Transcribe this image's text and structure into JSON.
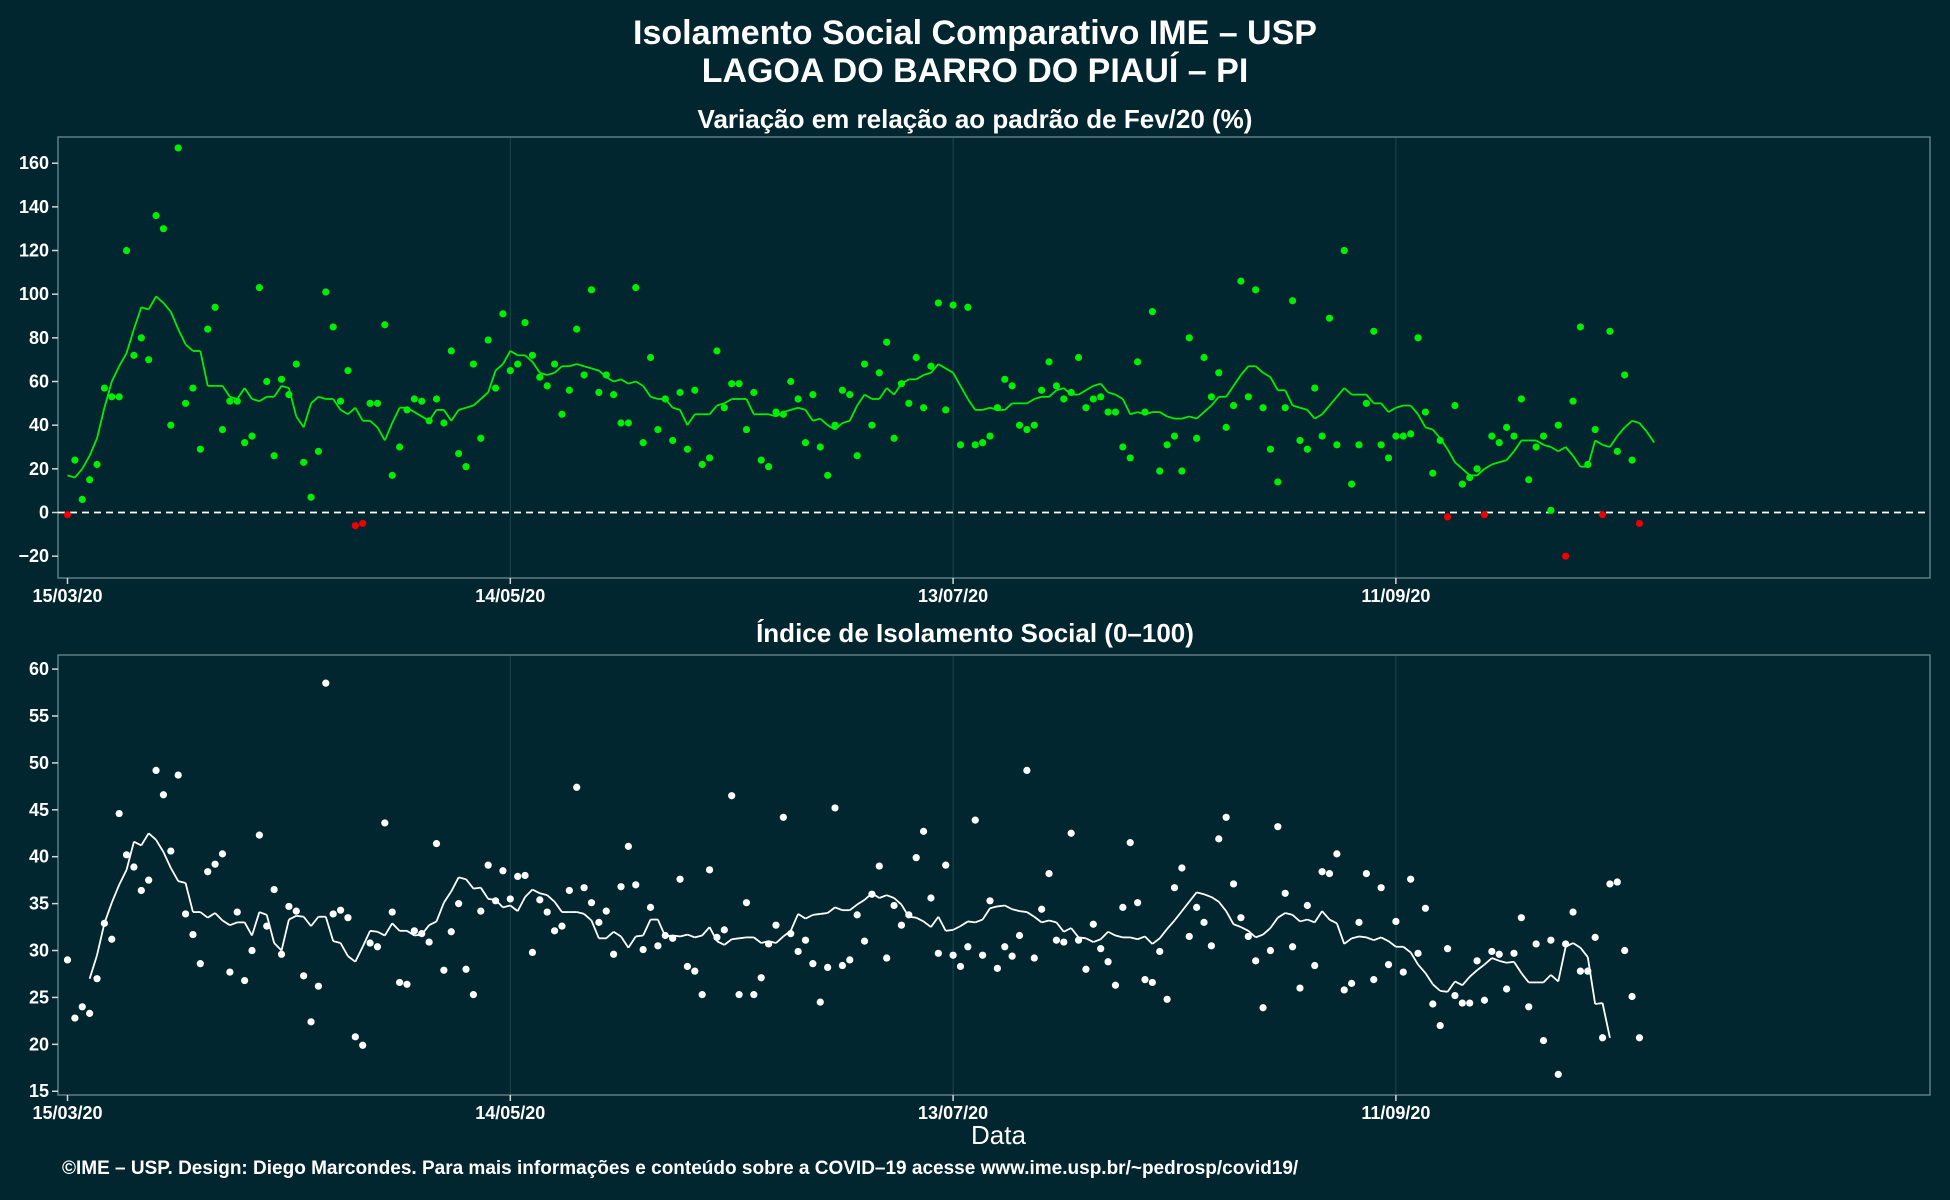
{
  "header": {
    "title": "Isolamento Social Comparativo IME – USP",
    "subtitle": "LAGOA DO BARRO DO PIAUÍ – PI"
  },
  "footer": "©IME – USP. Design: Diego Marcondes. Para mais informações e conteúdo sobre a COVID–19 acesse www.ime.usp.br/~pedrosp/covid19/",
  "colors": {
    "background": "#022630",
    "positive": "#00ee00",
    "negative": "#ee0000",
    "index": "#ffffff"
  },
  "chart_data": [
    {
      "type": "scatter",
      "title": "Variação em relação ao padrão de Fev/20 (%)",
      "xlabel": "",
      "ylabel": "",
      "x_start": "15/03/20",
      "x_ticks": [
        "15/03/20",
        "14/05/20",
        "13/07/20",
        "11/09/20"
      ],
      "ylim": [
        -30,
        172
      ],
      "y_ticks": [
        -20,
        0,
        20,
        40,
        60,
        80,
        100,
        120,
        140,
        160
      ],
      "reference_line": 0,
      "grid": true,
      "series": [
        {
          "kind": "daily-points",
          "values": [
            -1,
            24,
            6,
            15,
            22,
            57,
            53,
            53,
            120,
            72,
            80,
            70,
            136,
            130,
            40,
            167,
            50,
            57,
            29,
            84,
            94,
            38,
            51,
            51,
            32,
            35,
            103,
            60,
            26,
            61,
            54,
            68,
            23,
            7,
            28,
            101,
            85,
            51,
            65,
            -6,
            -5,
            50,
            50,
            86,
            17,
            30,
            47,
            52,
            51,
            42,
            52,
            41,
            74,
            27,
            21,
            68,
            34,
            79,
            57,
            91,
            65,
            68,
            87,
            72,
            62,
            58,
            68,
            45,
            56,
            84,
            63,
            102,
            55,
            63,
            54,
            41,
            41,
            103,
            32,
            71,
            38,
            52,
            33,
            55,
            29,
            56,
            22,
            25,
            74,
            48,
            59,
            59,
            38,
            55,
            24,
            21,
            46,
            45,
            60,
            52,
            32,
            54,
            30,
            17,
            40,
            56,
            54,
            26,
            68,
            40,
            64,
            78,
            34,
            59,
            50,
            71,
            48,
            67,
            96,
            47,
            95,
            31,
            94,
            31,
            32,
            35,
            48,
            61,
            58,
            40,
            38,
            40,
            56,
            69,
            58,
            52,
            55,
            71,
            48,
            52,
            53,
            46,
            46,
            30,
            25,
            69,
            46,
            92,
            19,
            31,
            35,
            19,
            80,
            34,
            71,
            53,
            64,
            39,
            49,
            106,
            53,
            102,
            48,
            29,
            14,
            48,
            97,
            33,
            29,
            57,
            35,
            89,
            31,
            120,
            13,
            31,
            50,
            83,
            31,
            25,
            35,
            35,
            36,
            80,
            46,
            18,
            33,
            -2,
            49,
            13,
            16,
            20,
            -1,
            35,
            32,
            39,
            35,
            52,
            15,
            30,
            35,
            1,
            40,
            -20,
            51,
            85,
            22,
            38,
            -1,
            83,
            28,
            63,
            24,
            -5
          ]
        },
        {
          "kind": "moving-average",
          "values": [
            17,
            16,
            20,
            26,
            34,
            48,
            60,
            67,
            73,
            84,
            94,
            93,
            99,
            96,
            92,
            84,
            77,
            74,
            74,
            58,
            58,
            58,
            53,
            52,
            57,
            52,
            51,
            53,
            53,
            58,
            57,
            44,
            39,
            50,
            53,
            52,
            52,
            47,
            45,
            48,
            42,
            42,
            39,
            33,
            41,
            48,
            48,
            46,
            44,
            42,
            47,
            47,
            42,
            47,
            48,
            49,
            52,
            55,
            65,
            68,
            74,
            72,
            72,
            69,
            64,
            63,
            64,
            67,
            67,
            68,
            67,
            66,
            65,
            62,
            60,
            61,
            59,
            60,
            58,
            53,
            52,
            52,
            48,
            47,
            40,
            45,
            45,
            45,
            49,
            50,
            52,
            52,
            52,
            45,
            45,
            45,
            44,
            46,
            47,
            48,
            47,
            42,
            43,
            40,
            38,
            41,
            42,
            49,
            54,
            52,
            52,
            57,
            54,
            59,
            61,
            61,
            63,
            64,
            68,
            66,
            64,
            58,
            52,
            47,
            47,
            48,
            47,
            47,
            50,
            50,
            50,
            52,
            53,
            53,
            56,
            57,
            54,
            54,
            56,
            58,
            59,
            55,
            54,
            52,
            45,
            46,
            45,
            46,
            46,
            44,
            43,
            43,
            44,
            43,
            46,
            49,
            53,
            53,
            58,
            63,
            67,
            67,
            64,
            62,
            56,
            56,
            49,
            48,
            47,
            43,
            45,
            49,
            53,
            57,
            54,
            54,
            54,
            50,
            50,
            46,
            48,
            49,
            49,
            45,
            39,
            38,
            34,
            29,
            23,
            20,
            17,
            17,
            20,
            22,
            23,
            24,
            28,
            33,
            33,
            33,
            31,
            30,
            28,
            30,
            26,
            21,
            21,
            33,
            31,
            30,
            35,
            39,
            42,
            41,
            37,
            32
          ]
        }
      ]
    },
    {
      "type": "scatter",
      "title": "Índice de Isolamento Social (0–100)",
      "xlabel": "Data",
      "ylabel": "",
      "x_start": "15/03/20",
      "x_ticks": [
        "15/03/20",
        "14/05/20",
        "13/07/20",
        "11/09/20"
      ],
      "ylim": [
        14.6,
        61.5
      ],
      "y_ticks": [
        15,
        20,
        25,
        30,
        35,
        40,
        45,
        50,
        55,
        60
      ],
      "grid": true,
      "series": [
        {
          "kind": "daily-points",
          "values": [
            29,
            22.8,
            24,
            23.3,
            27,
            32.9,
            31.2,
            44.6,
            40.2,
            38.9,
            36.4,
            37.5,
            49.2,
            46.6,
            40.6,
            48.7,
            33.9,
            31.7,
            28.6,
            38.4,
            39.2,
            40.3,
            27.7,
            34.1,
            26.8,
            30,
            42.3,
            32.6,
            36.5,
            29.6,
            34.7,
            34.2,
            27.3,
            22.4,
            26.2,
            58.5,
            33.9,
            34.3,
            33.5,
            20.8,
            19.9,
            30.8,
            30.4,
            43.6,
            34.1,
            26.6,
            26.4,
            32.1,
            31.8,
            30.9,
            41.4,
            27.9,
            32,
            35,
            28,
            25.3,
            34.2,
            39.1,
            35.3,
            38.5,
            35.5,
            37.9,
            38,
            29.8,
            35.4,
            34.1,
            32.1,
            32.6,
            36.4,
            47.4,
            36.7,
            35.1,
            33,
            34.2,
            29.6,
            36.8,
            41.1,
            37,
            30.1,
            34.6,
            30.5,
            31.6,
            31.3,
            37.6,
            28.3,
            27.8,
            25.3,
            38.6,
            31.4,
            32.2,
            46.5,
            25.3,
            35.1,
            25.3,
            27.1,
            30.7,
            32.7,
            44.2,
            31.8,
            29.9,
            31.1,
            28.6,
            24.5,
            28.2,
            45.2,
            28.4,
            29,
            33.8,
            31,
            36,
            39,
            29.2,
            34.8,
            32.7,
            33.8,
            39.9,
            42.7,
            35.6,
            29.7,
            39.1,
            29.5,
            28.3,
            30.4,
            43.9,
            29.5,
            35.3,
            28.1,
            30.4,
            29.4,
            31.6,
            49.2,
            29.2,
            34.4,
            38.2,
            31.1,
            30.9,
            42.5,
            31.1,
            28,
            32.8,
            30.2,
            28.8,
            26.3,
            34.6,
            41.5,
            35.1,
            26.9,
            26.6,
            29.9,
            24.8,
            36.7,
            38.8,
            31.5,
            34.6,
            33,
            30.5,
            41.9,
            44.2,
            37.1,
            33.5,
            31.5,
            28.9,
            23.9,
            30,
            43.2,
            36.1,
            30.4,
            26,
            34.8,
            28.4,
            38.4,
            38.2,
            40.3,
            25.8,
            26.5,
            33,
            38.2,
            26.9,
            36.7,
            28.5,
            33.1,
            27.7,
            37.6,
            29.7,
            34.5,
            24.3,
            22,
            30.2,
            25.2,
            24.4,
            24.4,
            28.9,
            24.7,
            29.9,
            29.6,
            25.9,
            29.7,
            33.5,
            24,
            30.7,
            20.4,
            31.1,
            16.8,
            30.7,
            34.1,
            27.8,
            27.8,
            31.4,
            20.7,
            37.1,
            37.3,
            30,
            25.1,
            20.7
          ]
        },
        {
          "kind": "moving-average",
          "values": [
            null,
            null,
            null,
            27,
            29.5,
            32.9,
            35.1,
            37,
            38.6,
            41.6,
            41.2,
            42.5,
            41.8,
            40.5,
            38.8,
            37.4,
            37.2,
            34.1,
            34.1,
            33.5,
            34,
            33.2,
            32.7,
            33,
            33,
            31.6,
            34.1,
            33.8,
            30.8,
            30,
            33.3,
            33.7,
            33.6,
            32.6,
            33.6,
            33.6,
            31,
            30.8,
            29.4,
            28.8,
            30.4,
            32.1,
            32,
            31.6,
            32.9,
            32.1,
            32.1,
            31.6,
            31.7,
            32.7,
            33.1,
            35.1,
            36.3,
            37.8,
            37.6,
            36.6,
            36.7,
            35.5,
            35.4,
            34.6,
            34.8,
            34.2,
            35.7,
            36.5,
            36.1,
            35.9,
            35.2,
            34.1,
            34.1,
            34.1,
            33.9,
            33.2,
            31.3,
            31.3,
            32,
            31.5,
            30.3,
            31.5,
            31.6,
            33.3,
            33.3,
            31.5,
            31.6,
            31.5,
            31.7,
            31.4,
            31.6,
            32.5,
            31,
            30.6,
            31.2,
            31.3,
            31.4,
            31.4,
            30.8,
            31,
            30.8,
            31.5,
            32.1,
            33.9,
            33.4,
            33.8,
            33.9,
            34,
            34.6,
            34.3,
            34.3,
            34.9,
            35.4,
            36.1,
            35.6,
            35.9,
            35.6,
            34.9,
            33.6,
            33.5,
            33.1,
            32.5,
            33.6,
            32.1,
            32.2,
            32.6,
            33.1,
            33,
            33.3,
            34.5,
            34.7,
            34.8,
            34.4,
            34.2,
            34.1,
            33.6,
            33,
            33.2,
            33,
            32,
            32.4,
            31.4,
            31.3,
            30.9,
            31.2,
            32,
            31.6,
            31.4,
            31.4,
            31.2,
            31.5,
            30.7,
            31.3,
            32.3,
            33.2,
            34.2,
            35.2,
            36.2,
            36,
            35.7,
            35.2,
            34.2,
            32.8,
            32.5,
            32.1,
            31.4,
            31.7,
            32.4,
            33.5,
            34,
            33.8,
            33.1,
            33.3,
            33,
            34.2,
            33.3,
            32.9,
            30.7,
            31.3,
            31.5,
            31.4,
            31.1,
            31.4,
            31,
            30.4,
            30.4,
            29.8,
            28.5,
            27.6,
            26.4,
            25.7,
            25.6,
            26.7,
            26.3,
            27.2,
            27.9,
            28.5,
            29.2,
            28.9,
            28.7,
            28.8,
            27.6,
            26.6,
            26.6,
            26.6,
            27.4,
            26.7,
            30.4,
            30.8,
            30.3,
            29.3,
            24.3,
            24.4,
            20.7
          ]
        }
      ]
    }
  ]
}
